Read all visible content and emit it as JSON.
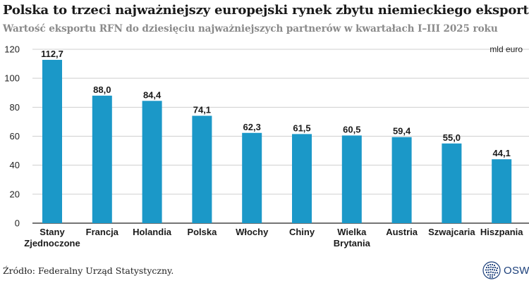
{
  "header": {
    "title": "Polska to trzeci najważniejszy europejski rynek zbytu niemieckiego eksportu",
    "subtitle": "Wartość eksportu RFN do dziesięciu najważniejszych partnerów w kwartałach I–III 2025 roku"
  },
  "chart_data": {
    "type": "bar",
    "categories": [
      [
        "Stany",
        "Zjednoczone"
      ],
      [
        "Francja"
      ],
      [
        "Holandia"
      ],
      [
        "Polska"
      ],
      [
        "Włochy"
      ],
      [
        "Chiny"
      ],
      [
        "Wielka",
        "Brytania"
      ],
      [
        "Austria"
      ],
      [
        "Szwajcaria"
      ],
      [
        "Hiszpania"
      ]
    ],
    "values": [
      112.7,
      88.0,
      84.4,
      74.1,
      62.3,
      61.5,
      60.5,
      59.4,
      55.0,
      44.1
    ],
    "value_labels": [
      "112,7",
      "88,0",
      "84,4",
      "74,1",
      "62,3",
      "61,5",
      "60,5",
      "59,4",
      "55,0",
      "44,1"
    ],
    "unit_label": "mld euro",
    "ylim": [
      0,
      120
    ],
    "yticks": [
      0,
      20,
      40,
      60,
      80,
      100,
      120
    ],
    "grid": true,
    "bar_color": "#1b98c8"
  },
  "footer": {
    "source": "Źródło: Federalny Urząd Statystyczny.",
    "logo_text": "OSW"
  }
}
